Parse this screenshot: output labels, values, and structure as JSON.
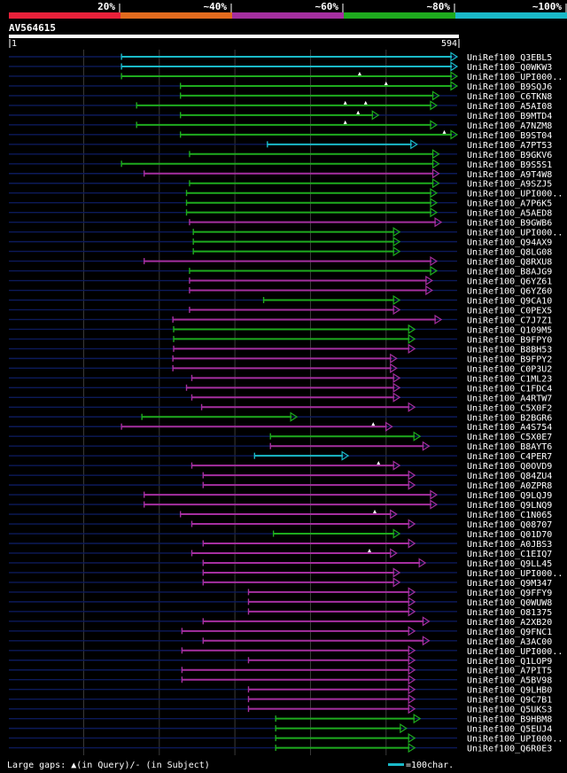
{
  "chart_data": {
    "type": "alignment-overview",
    "query_name": "AV564615",
    "query_start": "1",
    "query_end": "594",
    "query_length": 594,
    "identity_legend": [
      {
        "label": "20%",
        "color": "#e8213a"
      },
      {
        "label": "~40%",
        "color": "#e36b1e"
      },
      {
        "label": "~60%",
        "color": "#a52fa0"
      },
      {
        "label": "~80%",
        "color": "#1eab1e"
      },
      {
        "label": "~100%",
        "color": "#1ab9c8"
      }
    ],
    "colors": {
      "cyan": "#1ab9c8",
      "green": "#1eab1e",
      "purple": "#a52fa0",
      "query": "#ffffff",
      "background_line": "#0c1a5a",
      "grid": "#3a3a3a",
      "gap_marker": "#ffffff"
    },
    "hits": [
      {
        "name": "UniRef100_Q3EBL5",
        "color": "cyan",
        "start": 150,
        "end": 594,
        "gaps": []
      },
      {
        "name": "UniRef100_Q0WKW3",
        "color": "cyan",
        "start": 150,
        "end": 594,
        "gaps": []
      },
      {
        "name": "UniRef100_UPI000..",
        "color": "green",
        "start": 150,
        "end": 594,
        "gaps": [
          465
        ]
      },
      {
        "name": "UniRef100_B9SQJ6",
        "color": "green",
        "start": 228,
        "end": 594,
        "gaps": [
          500
        ]
      },
      {
        "name": "UniRef100_C6TKN8",
        "color": "green",
        "start": 228,
        "end": 570,
        "gaps": []
      },
      {
        "name": "UniRef100_A5AI08",
        "color": "green",
        "start": 170,
        "end": 567,
        "gaps": [
          446,
          473
        ]
      },
      {
        "name": "UniRef100_B9MTD4",
        "color": "green",
        "start": 228,
        "end": 490,
        "gaps": [
          463
        ]
      },
      {
        "name": "UniRef100_A7NZM8",
        "color": "green",
        "start": 170,
        "end": 567,
        "gaps": [
          446
        ]
      },
      {
        "name": "UniRef100_B9ST04",
        "color": "green",
        "start": 228,
        "end": 594,
        "gaps": [
          577
        ]
      },
      {
        "name": "UniRef100_A7PT53",
        "color": "cyan",
        "start": 343,
        "end": 541,
        "gaps": []
      },
      {
        "name": "UniRef100_B9GKV6",
        "color": "green",
        "start": 240,
        "end": 570,
        "gaps": []
      },
      {
        "name": "UniRef100_B9S5S1",
        "color": "green",
        "start": 150,
        "end": 570,
        "gaps": []
      },
      {
        "name": "UniRef100_A9T4W8",
        "color": "purple",
        "start": 180,
        "end": 570,
        "gaps": []
      },
      {
        "name": "UniRef100_A9SZJ5",
        "color": "green",
        "start": 240,
        "end": 570,
        "gaps": []
      },
      {
        "name": "UniRef100_UPI000..",
        "color": "green",
        "start": 236,
        "end": 567,
        "gaps": []
      },
      {
        "name": "UniRef100_A7P6K5",
        "color": "green",
        "start": 236,
        "end": 567,
        "gaps": []
      },
      {
        "name": "UniRef100_A5AED8",
        "color": "green",
        "start": 236,
        "end": 567,
        "gaps": []
      },
      {
        "name": "UniRef100_B9GWB6",
        "color": "purple",
        "start": 240,
        "end": 573,
        "gaps": []
      },
      {
        "name": "UniRef100_UPI000..",
        "color": "green",
        "start": 245,
        "end": 518,
        "gaps": []
      },
      {
        "name": "UniRef100_Q94AX9",
        "color": "green",
        "start": 245,
        "end": 518,
        "gaps": []
      },
      {
        "name": "UniRef100_Q8LG08",
        "color": "green",
        "start": 245,
        "end": 518,
        "gaps": []
      },
      {
        "name": "UniRef100_Q8RXU8",
        "color": "purple",
        "start": 180,
        "end": 567,
        "gaps": []
      },
      {
        "name": "UniRef100_B8AJG9",
        "color": "green",
        "start": 240,
        "end": 567,
        "gaps": []
      },
      {
        "name": "UniRef100_Q6YZ61",
        "color": "purple",
        "start": 240,
        "end": 561,
        "gaps": []
      },
      {
        "name": "UniRef100_Q6YZ60",
        "color": "purple",
        "start": 240,
        "end": 561,
        "gaps": []
      },
      {
        "name": "UniRef100_Q9CA10",
        "color": "green",
        "start": 338,
        "end": 518,
        "gaps": []
      },
      {
        "name": "UniRef100_C0PEX5",
        "color": "purple",
        "start": 240,
        "end": 518,
        "gaps": []
      },
      {
        "name": "UniRef100_C7J7Z1",
        "color": "purple",
        "start": 218,
        "end": 573,
        "gaps": []
      },
      {
        "name": "UniRef100_Q109M5",
        "color": "green",
        "start": 219,
        "end": 538,
        "gaps": []
      },
      {
        "name": "UniRef100_B9FPY0",
        "color": "green",
        "start": 219,
        "end": 538,
        "gaps": []
      },
      {
        "name": "UniRef100_B8BH53",
        "color": "purple",
        "start": 219,
        "end": 538,
        "gaps": []
      },
      {
        "name": "UniRef100_B9FPY2",
        "color": "purple",
        "start": 218,
        "end": 514,
        "gaps": []
      },
      {
        "name": "UniRef100_C0P3U2",
        "color": "purple",
        "start": 218,
        "end": 514,
        "gaps": []
      },
      {
        "name": "UniRef100_C1ML23",
        "color": "purple",
        "start": 243,
        "end": 518,
        "gaps": []
      },
      {
        "name": "UniRef100_C1FDC4",
        "color": "purple",
        "start": 236,
        "end": 518,
        "gaps": []
      },
      {
        "name": "UniRef100_A4RTW7",
        "color": "purple",
        "start": 243,
        "end": 518,
        "gaps": []
      },
      {
        "name": "UniRef100_C5X0F2",
        "color": "purple",
        "start": 256,
        "end": 538,
        "gaps": []
      },
      {
        "name": "UniRef100_B2BGR6",
        "color": "green",
        "start": 177,
        "end": 382,
        "gaps": []
      },
      {
        "name": "UniRef100_A4S754",
        "color": "purple",
        "start": 150,
        "end": 508,
        "gaps": [
          483
        ]
      },
      {
        "name": "UniRef100_C5X0E7",
        "color": "green",
        "start": 347,
        "end": 545,
        "gaps": []
      },
      {
        "name": "UniRef100_B8AYT6",
        "color": "purple",
        "start": 347,
        "end": 557,
        "gaps": []
      },
      {
        "name": "UniRef100_C4PER7",
        "color": "cyan",
        "start": 326,
        "end": 450,
        "gaps": []
      },
      {
        "name": "UniRef100_Q0OVD9",
        "color": "purple",
        "start": 243,
        "end": 518,
        "gaps": [
          490
        ]
      },
      {
        "name": "UniRef100_Q84ZU4",
        "color": "purple",
        "start": 258,
        "end": 538,
        "gaps": []
      },
      {
        "name": "UniRef100_A0ZPR8",
        "color": "purple",
        "start": 258,
        "end": 538,
        "gaps": []
      },
      {
        "name": "UniRef100_Q9LQJ9",
        "color": "purple",
        "start": 180,
        "end": 567,
        "gaps": []
      },
      {
        "name": "UniRef100_Q9LNQ9",
        "color": "purple",
        "start": 180,
        "end": 567,
        "gaps": []
      },
      {
        "name": "UniRef100_C1N065",
        "color": "purple",
        "start": 228,
        "end": 514,
        "gaps": [
          485
        ]
      },
      {
        "name": "UniRef100_Q08707",
        "color": "purple",
        "start": 243,
        "end": 538,
        "gaps": []
      },
      {
        "name": "UniRef100_Q01D70",
        "color": "green",
        "start": 351,
        "end": 518,
        "gaps": []
      },
      {
        "name": "UniRef100_A0JBS3",
        "color": "purple",
        "start": 258,
        "end": 538,
        "gaps": []
      },
      {
        "name": "UniRef100_C1EIQ7",
        "color": "purple",
        "start": 243,
        "end": 514,
        "gaps": [
          478
        ]
      },
      {
        "name": "UniRef100_Q9LL45",
        "color": "purple",
        "start": 258,
        "end": 552,
        "gaps": []
      },
      {
        "name": "UniRef100_UPI000..",
        "color": "purple",
        "start": 258,
        "end": 518,
        "gaps": []
      },
      {
        "name": "UniRef100_Q9M347",
        "color": "purple",
        "start": 258,
        "end": 518,
        "gaps": []
      },
      {
        "name": "UniRef100_Q9FFY9",
        "color": "purple",
        "start": 318,
        "end": 538,
        "gaps": []
      },
      {
        "name": "UniRef100_Q0WUW8",
        "color": "purple",
        "start": 318,
        "end": 538,
        "gaps": []
      },
      {
        "name": "UniRef100_O81375",
        "color": "purple",
        "start": 318,
        "end": 538,
        "gaps": []
      },
      {
        "name": "UniRef100_A2XB20",
        "color": "purple",
        "start": 258,
        "end": 557,
        "gaps": []
      },
      {
        "name": "UniRef100_Q9FNC1",
        "color": "purple",
        "start": 230,
        "end": 538,
        "gaps": []
      },
      {
        "name": "UniRef100_A3AC00",
        "color": "purple",
        "start": 258,
        "end": 557,
        "gaps": []
      },
      {
        "name": "UniRef100_UPI000..",
        "color": "purple",
        "start": 230,
        "end": 538,
        "gaps": []
      },
      {
        "name": "UniRef100_Q1LOP9",
        "color": "purple",
        "start": 318,
        "end": 538,
        "gaps": []
      },
      {
        "name": "UniRef100_A7PIT5",
        "color": "purple",
        "start": 230,
        "end": 538,
        "gaps": []
      },
      {
        "name": "UniRef100_A5BV98",
        "color": "purple",
        "start": 230,
        "end": 538,
        "gaps": []
      },
      {
        "name": "UniRef100_Q9LHB0",
        "color": "purple",
        "start": 318,
        "end": 538,
        "gaps": []
      },
      {
        "name": "UniRef100_Q9C7B1",
        "color": "purple",
        "start": 318,
        "end": 538,
        "gaps": []
      },
      {
        "name": "UniRef100_Q5UKS3",
        "color": "purple",
        "start": 318,
        "end": 538,
        "gaps": []
      },
      {
        "name": "UniRef100_B9HBM8",
        "color": "green",
        "start": 354,
        "end": 545,
        "gaps": []
      },
      {
        "name": "UniRef100_Q5EUJ4",
        "color": "green",
        "start": 354,
        "end": 527,
        "gaps": []
      },
      {
        "name": "UniRef100_UPI000..",
        "color": "green",
        "start": 354,
        "end": 538,
        "gaps": []
      },
      {
        "name": "UniRef100_Q6R0E3",
        "color": "green",
        "start": 354,
        "end": 538,
        "gaps": []
      }
    ]
  },
  "footer": {
    "gaps_legend": "Large gaps: ▲(in Query)/- (in Subject)",
    "scale_legend": "=100char."
  }
}
